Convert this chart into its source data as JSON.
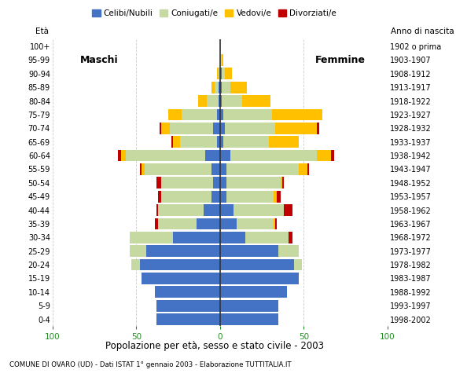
{
  "age_groups": [
    "0-4",
    "5-9",
    "10-14",
    "15-19",
    "20-24",
    "25-29",
    "30-34",
    "35-39",
    "40-44",
    "45-49",
    "50-54",
    "55-59",
    "60-64",
    "65-69",
    "70-74",
    "75-79",
    "80-84",
    "85-89",
    "90-94",
    "95-99",
    "100+"
  ],
  "birth_years": [
    "1998-2002",
    "1993-1997",
    "1988-1992",
    "1983-1987",
    "1978-1982",
    "1973-1977",
    "1968-1972",
    "1963-1967",
    "1958-1962",
    "1953-1957",
    "1948-1952",
    "1943-1947",
    "1938-1942",
    "1933-1937",
    "1928-1932",
    "1923-1927",
    "1918-1922",
    "1913-1917",
    "1908-1912",
    "1903-1907",
    "1902 o prima"
  ],
  "colors": {
    "celibi": "#4472c4",
    "coniugati": "#c6d9a0",
    "vedovi": "#ffc000",
    "divorziati": "#c00000"
  },
  "males": {
    "celibi": [
      38,
      38,
      39,
      47,
      48,
      44,
      28,
      14,
      10,
      5,
      4,
      5,
      9,
      2,
      4,
      2,
      1,
      1,
      0,
      0,
      0
    ],
    "coniugati": [
      0,
      0,
      0,
      0,
      5,
      10,
      26,
      23,
      27,
      30,
      31,
      40,
      47,
      22,
      26,
      21,
      7,
      2,
      1,
      0,
      0
    ],
    "vedovi": [
      0,
      0,
      0,
      0,
      0,
      0,
      0,
      0,
      0,
      0,
      0,
      2,
      3,
      4,
      5,
      8,
      5,
      2,
      1,
      0,
      0
    ],
    "divorziati": [
      0,
      0,
      0,
      0,
      0,
      0,
      0,
      2,
      1,
      2,
      3,
      1,
      2,
      1,
      1,
      0,
      0,
      0,
      0,
      0,
      0
    ]
  },
  "females": {
    "celibi": [
      35,
      35,
      40,
      47,
      44,
      35,
      15,
      10,
      8,
      4,
      4,
      4,
      6,
      2,
      3,
      2,
      1,
      1,
      1,
      0,
      0
    ],
    "coniugati": [
      0,
      0,
      0,
      0,
      5,
      12,
      26,
      22,
      30,
      28,
      32,
      43,
      52,
      27,
      30,
      29,
      12,
      5,
      2,
      1,
      0
    ],
    "vedovi": [
      0,
      0,
      0,
      0,
      0,
      0,
      0,
      1,
      0,
      2,
      1,
      5,
      8,
      18,
      25,
      30,
      17,
      10,
      4,
      1,
      0
    ],
    "divorziati": [
      0,
      0,
      0,
      0,
      0,
      0,
      2,
      1,
      5,
      2,
      1,
      1,
      2,
      0,
      1,
      0,
      0,
      0,
      0,
      0,
      0
    ]
  },
  "xlim": 100,
  "title": "Popolazione per età, sesso e stato civile - 2003",
  "subtitle": "COMUNE DI OVARO (UD) - Dati ISTAT 1° gennaio 2003 - Elaborazione TUTTITALIA.IT",
  "legend_labels": [
    "Celibi/Nubili",
    "Coniugati/e",
    "Vedovi/e",
    "Divorziati/e"
  ],
  "bg_color": "#ffffff",
  "grid_color": "#cccccc"
}
